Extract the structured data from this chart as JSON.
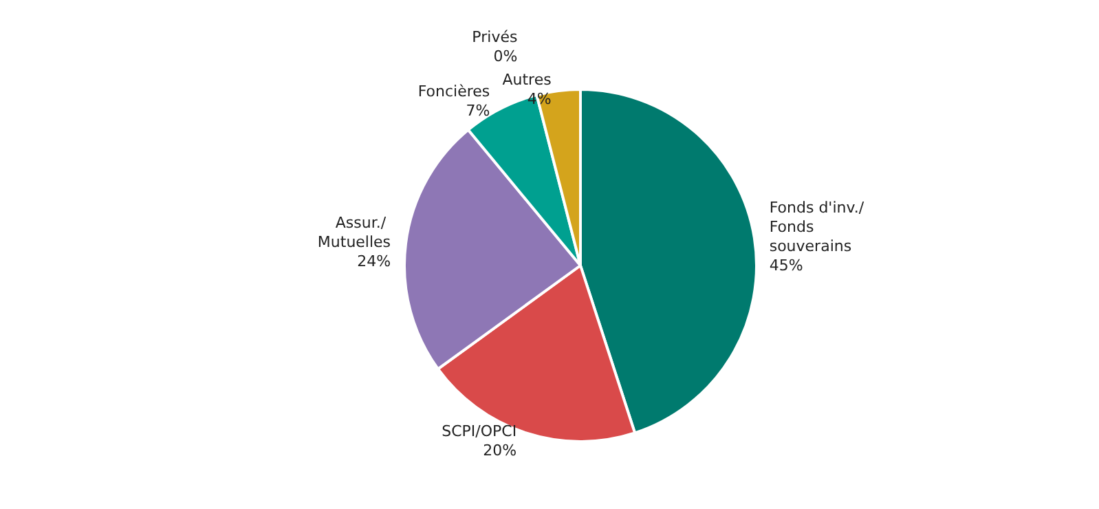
{
  "chart_data": {
    "type": "pie",
    "categories": [
      "Fonds d'inv./Fonds souverains",
      "SCPI/OPCI",
      "Assur./ Mutuelles",
      "Foncières",
      "Privés",
      "Autres"
    ],
    "values": [
      45,
      20,
      24,
      7,
      0,
      4
    ],
    "value_labels": [
      "45%",
      "20%",
      "24%",
      "7%",
      "0%",
      "4%"
    ],
    "colors": [
      "#007a6e",
      "#d94a4a",
      "#8e77b5",
      "#00a090",
      "#5b9bd5",
      "#d4a41c"
    ],
    "legend": false
  }
}
